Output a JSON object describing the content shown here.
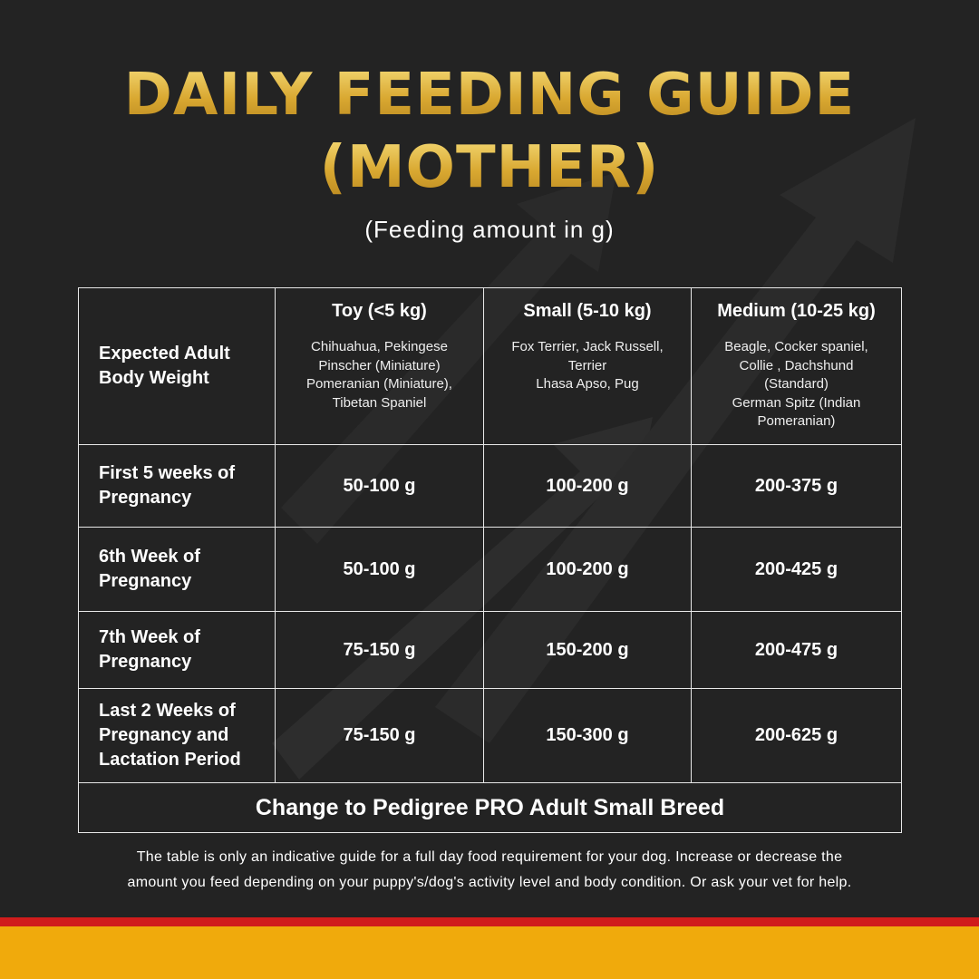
{
  "header": {
    "title": [
      "DAILY FEEDING GUIDE",
      "(MOTHER)"
    ],
    "subtitle": "(Feeding amount in g)"
  },
  "table": {
    "corner": "Expected Adult Body Weight",
    "columns": [
      {
        "name": "Toy (<5 kg)",
        "breeds": [
          "Chihuahua, Pekingese",
          "Pinscher (Miniature)",
          "Pomeranian (Miniature),",
          "Tibetan Spaniel"
        ]
      },
      {
        "name": "Small (5-10 kg)",
        "breeds": [
          "Fox Terrier, Jack Russell,",
          "Terrier",
          "Lhasa Apso, Pug"
        ]
      },
      {
        "name": "Medium (10-25 kg)",
        "breeds": [
          "Beagle, Cocker spaniel,",
          "Collie , Dachshund",
          "(Standard)",
          "German Spitz (Indian",
          "Pomeranian)"
        ]
      }
    ],
    "rows": [
      {
        "label": "First 5 weeks of Pregnancy",
        "values": [
          "50-100 g",
          "100-200 g",
          "200-375 g"
        ]
      },
      {
        "label": "6th Week of Pregnancy",
        "values": [
          "50-100 g",
          "100-200 g",
          "200-425 g"
        ]
      },
      {
        "label": "7th Week of Pregnancy",
        "values": [
          "75-150 g",
          "150-200 g",
          "200-475 g"
        ]
      },
      {
        "label": "Last 2 Weeks of Pregnancy and Lactation Period",
        "values": [
          "75-150 g",
          "150-300 g",
          "200-625 g"
        ]
      }
    ],
    "footer": "Change to Pedigree PRO Adult Small Breed"
  },
  "footnote": [
    "The table is only an indicative guide for a full day food requirement for your dog. Increase or decrease the",
    "amount you feed depending on your puppy's/dog's activity level and body condition. Or ask your vet for help."
  ]
}
